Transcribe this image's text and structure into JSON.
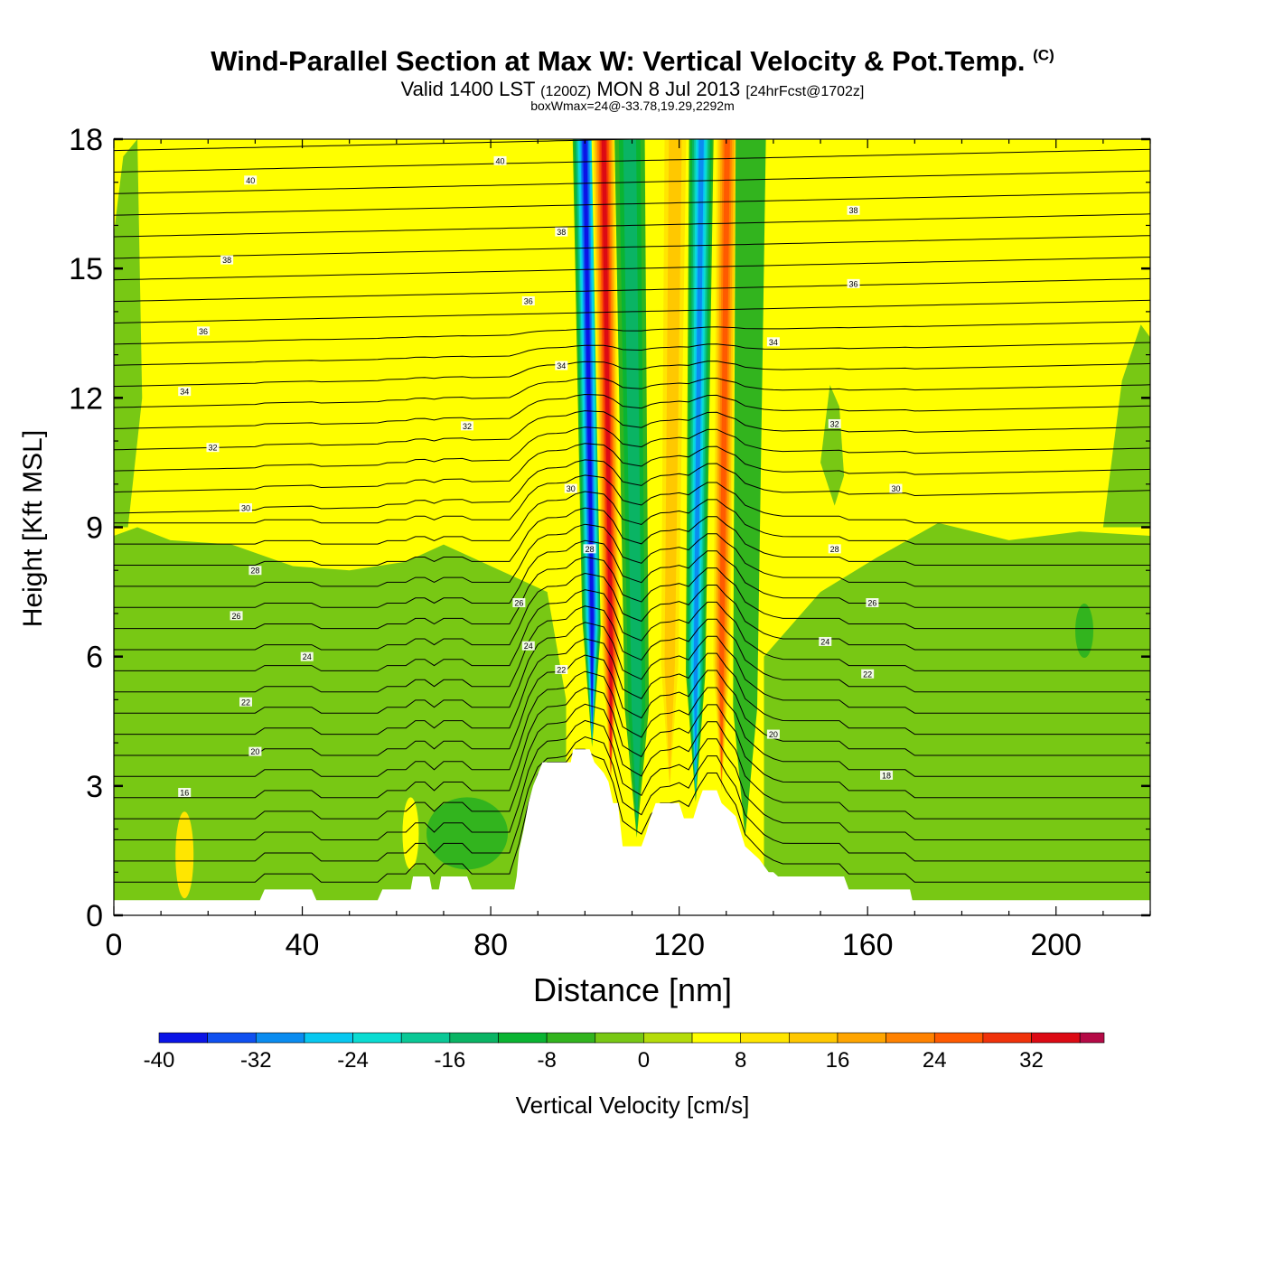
{
  "header": {
    "title": "Wind-Parallel Section at Max W: Vertical Velocity & Pot.Temp.",
    "copyright": "(C)",
    "valid_main": "Valid 1400 LST",
    "valid_zulu": "(1200Z)",
    "valid_date": "MON 8 Jul 2013",
    "forecast_info": "[24hrFcst@1702z]",
    "box_info": "boxWmax=24@-33.78,19.29,2292m"
  },
  "chart_data": {
    "type": "heatmap",
    "xlabel": "Distance [nm]",
    "ylabel": "Height [Kft MSL]",
    "xlim": [
      0,
      220
    ],
    "ylim": [
      0,
      18
    ],
    "xticks": [
      0,
      40,
      80,
      120,
      160,
      200
    ],
    "yticks": [
      0,
      3,
      6,
      9,
      12,
      15,
      18
    ],
    "colorbar": {
      "label": "Vertical Velocity [cm/s]",
      "ticks": [
        -40,
        -32,
        -24,
        -16,
        -8,
        0,
        8,
        16,
        24,
        32
      ],
      "bounds": [
        -40,
        38
      ],
      "step": 4,
      "colors": [
        "#0a14e6",
        "#0f50f0",
        "#0a8cf0",
        "#08c8f0",
        "#0adcd2",
        "#0ac896",
        "#0ab464",
        "#0ab432",
        "#32b41e",
        "#78c814",
        "#b4dc0a",
        "#ffff00",
        "#ffe600",
        "#ffc800",
        "#ffa500",
        "#ff8200",
        "#ff5a00",
        "#f0320a",
        "#dc0a14",
        "#b40a46"
      ]
    },
    "potential_temperature_contour_labels": [
      {
        "x": 15,
        "y": 2.85,
        "v": "16"
      },
      {
        "x": 30,
        "y": 3.8,
        "v": "20"
      },
      {
        "x": 28,
        "y": 4.95,
        "v": "22"
      },
      {
        "x": 41,
        "y": 6.0,
        "v": "24"
      },
      {
        "x": 26,
        "y": 6.95,
        "v": "26"
      },
      {
        "x": 30,
        "y": 8.0,
        "v": "28"
      },
      {
        "x": 28,
        "y": 9.45,
        "v": "30"
      },
      {
        "x": 21,
        "y": 10.85,
        "v": "32"
      },
      {
        "x": 15,
        "y": 12.15,
        "v": "34"
      },
      {
        "x": 19,
        "y": 13.55,
        "v": "36"
      },
      {
        "x": 24,
        "y": 15.2,
        "v": "38"
      },
      {
        "x": 29,
        "y": 17.05,
        "v": "40"
      },
      {
        "x": 82,
        "y": 17.5,
        "v": "40"
      },
      {
        "x": 95,
        "y": 15.85,
        "v": "38"
      },
      {
        "x": 88,
        "y": 14.25,
        "v": "36"
      },
      {
        "x": 95,
        "y": 12.75,
        "v": "34"
      },
      {
        "x": 75,
        "y": 11.35,
        "v": "32"
      },
      {
        "x": 97,
        "y": 9.9,
        "v": "30"
      },
      {
        "x": 101,
        "y": 8.5,
        "v": "28"
      },
      {
        "x": 86,
        "y": 7.25,
        "v": "26"
      },
      {
        "x": 88,
        "y": 6.25,
        "v": "24"
      },
      {
        "x": 95,
        "y": 5.7,
        "v": "22"
      },
      {
        "x": 140,
        "y": 4.2,
        "v": "20"
      },
      {
        "x": 164,
        "y": 3.25,
        "v": "18"
      },
      {
        "x": 160,
        "y": 5.6,
        "v": "22"
      },
      {
        "x": 151,
        "y": 6.35,
        "v": "24"
      },
      {
        "x": 161,
        "y": 7.25,
        "v": "26"
      },
      {
        "x": 153,
        "y": 8.5,
        "v": "28"
      },
      {
        "x": 166,
        "y": 9.9,
        "v": "30"
      },
      {
        "x": 153,
        "y": 11.4,
        "v": "32"
      },
      {
        "x": 140,
        "y": 13.3,
        "v": "34"
      },
      {
        "x": 157,
        "y": 14.65,
        "v": "36"
      },
      {
        "x": 157,
        "y": 16.35,
        "v": "38"
      }
    ],
    "velocity_features": [
      {
        "x": 101.5,
        "w": -38
      },
      {
        "x": 105.5,
        "w": 34
      },
      {
        "x": 111,
        "w": -14
      },
      {
        "x": 118,
        "w": 14
      },
      {
        "x": 123.5,
        "w": -30
      },
      {
        "x": 129,
        "w": 26
      },
      {
        "x": 134,
        "w": -6
      }
    ]
  }
}
